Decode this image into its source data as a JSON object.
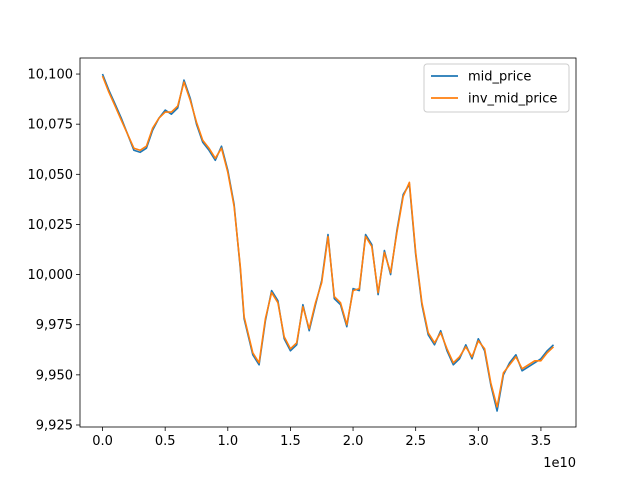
{
  "chart_data": {
    "type": "line",
    "title": "",
    "xlabel": "",
    "ylabel": "",
    "x_offset_label": "1e10",
    "xlim": [
      -0.18,
      3.78
    ],
    "ylim": [
      9924,
      10108
    ],
    "x_ticks": [
      0.0,
      0.5,
      1.0,
      1.5,
      2.0,
      2.5,
      3.0,
      3.5
    ],
    "x_tick_labels": [
      "0.0",
      "0.5",
      "1.0",
      "1.5",
      "2.0",
      "2.5",
      "3.0",
      "3.5"
    ],
    "y_ticks": [
      9925,
      9950,
      9975,
      10000,
      10025,
      10050,
      10075,
      10100
    ],
    "y_tick_labels": [
      "9,925",
      "9,950",
      "9,975",
      "10,000",
      "10,025",
      "10,050",
      "10,075",
      "10,100"
    ],
    "grid": false,
    "legend_position": "upper-right",
    "series": [
      {
        "name": "mid_price",
        "color": "#1f77b4",
        "x": [
          0.0,
          0.05,
          0.1,
          0.15,
          0.2,
          0.25,
          0.3,
          0.35,
          0.4,
          0.45,
          0.5,
          0.55,
          0.6,
          0.65,
          0.7,
          0.75,
          0.8,
          0.85,
          0.9,
          0.95,
          1.0,
          1.05,
          1.1,
          1.13,
          1.2,
          1.25,
          1.3,
          1.35,
          1.4,
          1.45,
          1.5,
          1.55,
          1.6,
          1.65,
          1.7,
          1.75,
          1.8,
          1.85,
          1.9,
          1.95,
          2.0,
          2.05,
          2.1,
          2.15,
          2.2,
          2.25,
          2.3,
          2.35,
          2.4,
          2.45,
          2.5,
          2.55,
          2.6,
          2.65,
          2.7,
          2.75,
          2.8,
          2.85,
          2.9,
          2.95,
          3.0,
          3.05,
          3.1,
          3.15,
          3.2,
          3.25,
          3.3,
          3.35,
          3.4,
          3.45,
          3.5,
          3.55,
          3.6
        ],
        "y": [
          10100,
          10092,
          10085,
          10078,
          10070,
          10062,
          10061,
          10063,
          10072,
          10078,
          10082,
          10080,
          10083,
          10097,
          10088,
          10075,
          10066,
          10062,
          10057,
          10064,
          10052,
          10035,
          10003,
          9978,
          9960,
          9955,
          9977,
          9992,
          9987,
          9968,
          9962,
          9965,
          9985,
          9972,
          9985,
          9997,
          10020,
          9988,
          9985,
          9974,
          9993,
          9992,
          10020,
          10015,
          9990,
          10012,
          10000,
          10022,
          10040,
          10045,
          10010,
          9985,
          9970,
          9965,
          9972,
          9962,
          9955,
          9958,
          9965,
          9958,
          9968,
          9962,
          9945,
          9932,
          9950,
          9956,
          9960,
          9952,
          9954,
          9956,
          9958,
          9962,
          9965
        ]
      },
      {
        "name": "inv_mid_price",
        "color": "#ff7f0e",
        "x": [
          0.0,
          0.05,
          0.1,
          0.15,
          0.2,
          0.25,
          0.3,
          0.35,
          0.4,
          0.45,
          0.5,
          0.55,
          0.6,
          0.65,
          0.7,
          0.75,
          0.8,
          0.85,
          0.9,
          0.95,
          1.0,
          1.05,
          1.1,
          1.13,
          1.2,
          1.25,
          1.3,
          1.35,
          1.4,
          1.45,
          1.5,
          1.55,
          1.6,
          1.65,
          1.7,
          1.75,
          1.8,
          1.85,
          1.9,
          1.95,
          2.0,
          2.05,
          2.1,
          2.15,
          2.2,
          2.25,
          2.3,
          2.35,
          2.4,
          2.45,
          2.5,
          2.55,
          2.6,
          2.65,
          2.7,
          2.75,
          2.8,
          2.85,
          2.9,
          2.95,
          3.0,
          3.05,
          3.1,
          3.15,
          3.2,
          3.25,
          3.3,
          3.35,
          3.4,
          3.45,
          3.5,
          3.55,
          3.6
        ],
        "y": [
          10099,
          10091,
          10084,
          10077,
          10070,
          10063,
          10062,
          10064,
          10073,
          10078,
          10081,
          10081,
          10084,
          10096,
          10087,
          10076,
          10067,
          10063,
          10058,
          10063,
          10051,
          10034,
          10004,
          9979,
          9961,
          9956,
          9978,
          9991,
          9986,
          9969,
          9963,
          9966,
          9984,
          9973,
          9986,
          9996,
          10019,
          9989,
          9986,
          9975,
          9992,
          9993,
          10019,
          10014,
          9991,
          10011,
          10001,
          10021,
          10039,
          10046,
          10011,
          9986,
          9971,
          9966,
          9971,
          9963,
          9956,
          9959,
          9964,
          9959,
          9967,
          9963,
          9946,
          9934,
          9951,
          9955,
          9959,
          9953,
          9955,
          9957,
          9957,
          9961,
          9964
        ]
      }
    ]
  }
}
